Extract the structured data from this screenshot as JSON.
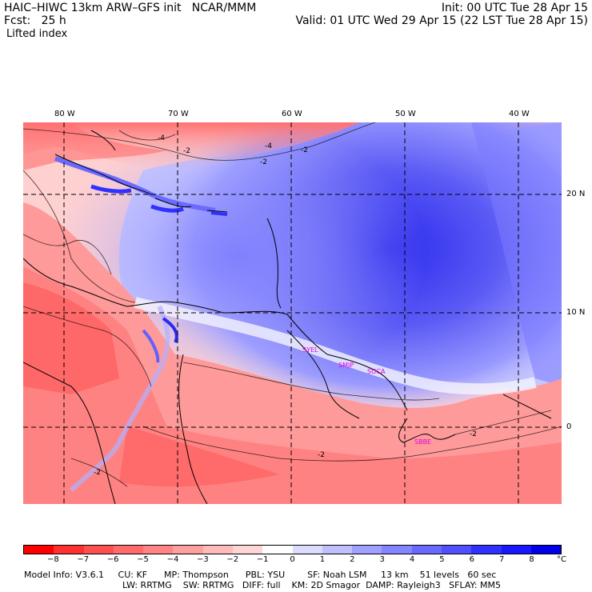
{
  "header": {
    "title": "HAIC–HIWC 13km ARW–GFS init   NCAR/MMM",
    "init": "Init: 00 UTC Tue 28 Apr 15",
    "forecast": "Fcst:   25 h",
    "valid": "Valid: 01 UTC Wed 29 Apr 15 (22 LST Tue 28 Apr 15)",
    "field": "Lifted index"
  },
  "map": {
    "lon_labels": [
      "80 W",
      "70 W",
      "60 W",
      "50 W",
      "40 W"
    ],
    "lat_labels": [
      "20 N",
      "10 N",
      "0"
    ],
    "contour_labels": [
      "-4",
      "-2",
      "-2",
      "-4",
      "-2",
      "-2",
      "-2",
      "-2"
    ],
    "stations": [
      "SYEL",
      "SMJP",
      "SOCA",
      "SBBE"
    ],
    "colors": {
      "coast": "#000000",
      "grid": "#000000",
      "station": "#e000e0"
    }
  },
  "colorbar": {
    "ticks": [
      "−8",
      "−7",
      "−6",
      "−5",
      "−4",
      "−3",
      "−2",
      "−1",
      "0",
      "1",
      "2",
      "3",
      "4",
      "5",
      "6",
      "7",
      "8"
    ],
    "unit": "°C",
    "colors": [
      "#ff0000",
      "#ff3030",
      "#ff5050",
      "#ff6a6a",
      "#ff8585",
      "#ffa0a0",
      "#ffbaba",
      "#ffd5d5",
      "#ffffff",
      "#dcdcff",
      "#c0c0ff",
      "#a0a0ff",
      "#8585ff",
      "#6a6aff",
      "#5050ff",
      "#3030ff",
      "#1818ff",
      "#0000e8"
    ]
  },
  "model_info": {
    "line1": "Model Info: V3.6.1     CU: KF      MP: Thompson      PBL: YSU        SF: Noah LSM     13 km    51 levels   60 sec",
    "line2": "LW: RRTMG    SW: RRTMG   DIFF: full    KM: 2D Smagor  DAMP: Rayleigh3   SFLAY: MM5"
  }
}
